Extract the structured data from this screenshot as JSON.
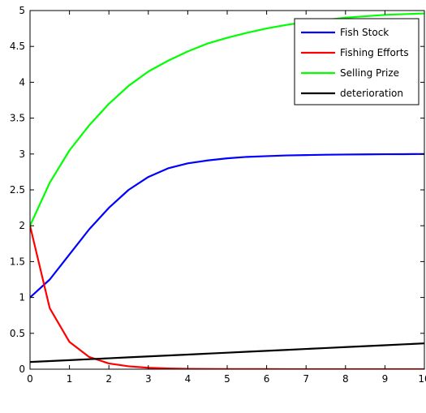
{
  "chart_data": {
    "type": "line",
    "title": "",
    "xlabel": "",
    "ylabel": "",
    "xlim": [
      0,
      10
    ],
    "ylim": [
      0,
      5
    ],
    "x_ticks": [
      0,
      1,
      2,
      3,
      4,
      5,
      6,
      7,
      8,
      9,
      10
    ],
    "y_ticks": [
      0,
      0.5,
      1,
      1.5,
      2,
      2.5,
      3,
      3.5,
      4,
      4.5,
      5
    ],
    "x_tick_labels": [
      "0",
      "1",
      "2",
      "3",
      "4",
      "5",
      "6",
      "7",
      "8",
      "9",
      "10"
    ],
    "y_tick_labels": [
      "0",
      "0.5",
      "1",
      "1.5",
      "2",
      "2.5",
      "3",
      "3.5",
      "4",
      "4.5",
      "5"
    ],
    "grid": false,
    "legend_position": "top-right",
    "x": [
      0,
      0.5,
      1,
      1.5,
      2,
      2.5,
      3,
      3.5,
      4,
      4.5,
      5,
      5.5,
      6,
      6.5,
      7,
      7.5,
      8,
      8.5,
      9,
      9.5,
      10
    ],
    "series": [
      {
        "name": "Fish Stock",
        "color": "#0000ff",
        "values": [
          1.0,
          1.25,
          1.6,
          1.95,
          2.25,
          2.5,
          2.68,
          2.8,
          2.87,
          2.91,
          2.94,
          2.96,
          2.97,
          2.98,
          2.985,
          2.99,
          2.993,
          2.995,
          2.997,
          2.998,
          3.0
        ]
      },
      {
        "name": "Fishing Efforts",
        "color": "#ff0000",
        "values": [
          2.0,
          0.85,
          0.38,
          0.17,
          0.08,
          0.04,
          0.02,
          0.01,
          0.005,
          0.003,
          0.002,
          0.001,
          0.001,
          0.0,
          0.0,
          0.0,
          0.0,
          0.0,
          0.0,
          0.0,
          0.0
        ]
      },
      {
        "name": "Selling Prize",
        "color": "#00ff00",
        "values": [
          2.0,
          2.6,
          3.05,
          3.4,
          3.7,
          3.95,
          4.15,
          4.3,
          4.43,
          4.54,
          4.62,
          4.69,
          4.75,
          4.8,
          4.84,
          4.87,
          4.9,
          4.92,
          4.94,
          4.95,
          4.96
        ]
      },
      {
        "name": "deterioration",
        "color": "#000000",
        "values": [
          0.1,
          0.113,
          0.126,
          0.139,
          0.152,
          0.165,
          0.178,
          0.191,
          0.204,
          0.217,
          0.23,
          0.243,
          0.256,
          0.269,
          0.282,
          0.295,
          0.308,
          0.321,
          0.334,
          0.347,
          0.36
        ]
      }
    ]
  }
}
